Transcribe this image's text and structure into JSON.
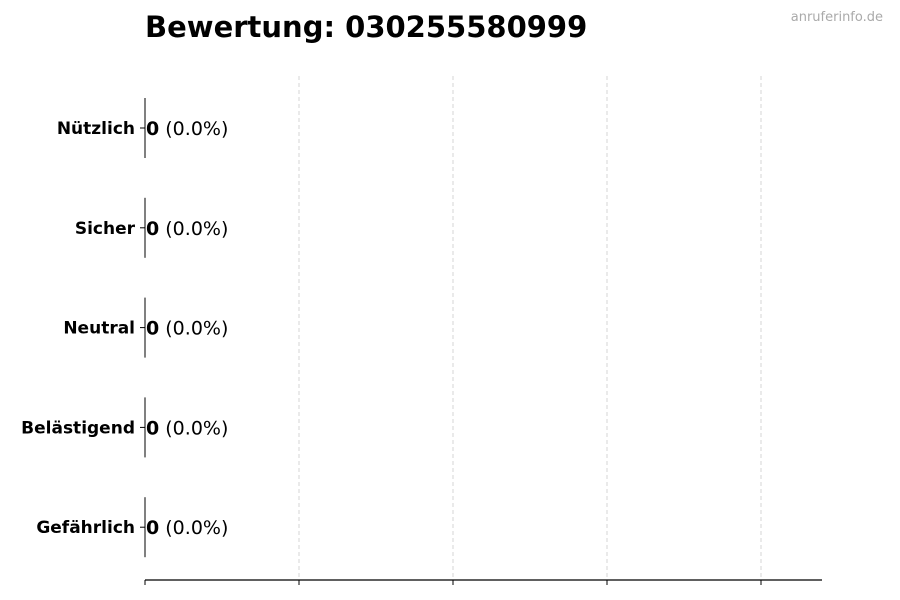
{
  "chart_data": {
    "type": "bar",
    "orientation": "horizontal",
    "title": "Bewertung: 030255580999",
    "categories": [
      "Nützlich",
      "Sicher",
      "Neutral",
      "Belästigend",
      "Gefährlich"
    ],
    "values": [
      0,
      0,
      0,
      0,
      0
    ],
    "data_labels": [
      {
        "count": "0",
        "percent": "(0.0%)"
      },
      {
        "count": "0",
        "percent": "(0.0%)"
      },
      {
        "count": "0",
        "percent": "(0.0%)"
      },
      {
        "count": "0",
        "percent": "(0.0%)"
      },
      {
        "count": "0",
        "percent": "(0.0%)"
      }
    ],
    "xlabel": "",
    "ylabel": "",
    "x_ticks_count": 5,
    "x_tick_labels_shown": false,
    "grid": "vertical dashed",
    "colors": {
      "bar_edge": "#000000",
      "grid": "#cccccc",
      "watermark": "#aaaaaa"
    }
  },
  "watermark": "anruferinfo.de"
}
